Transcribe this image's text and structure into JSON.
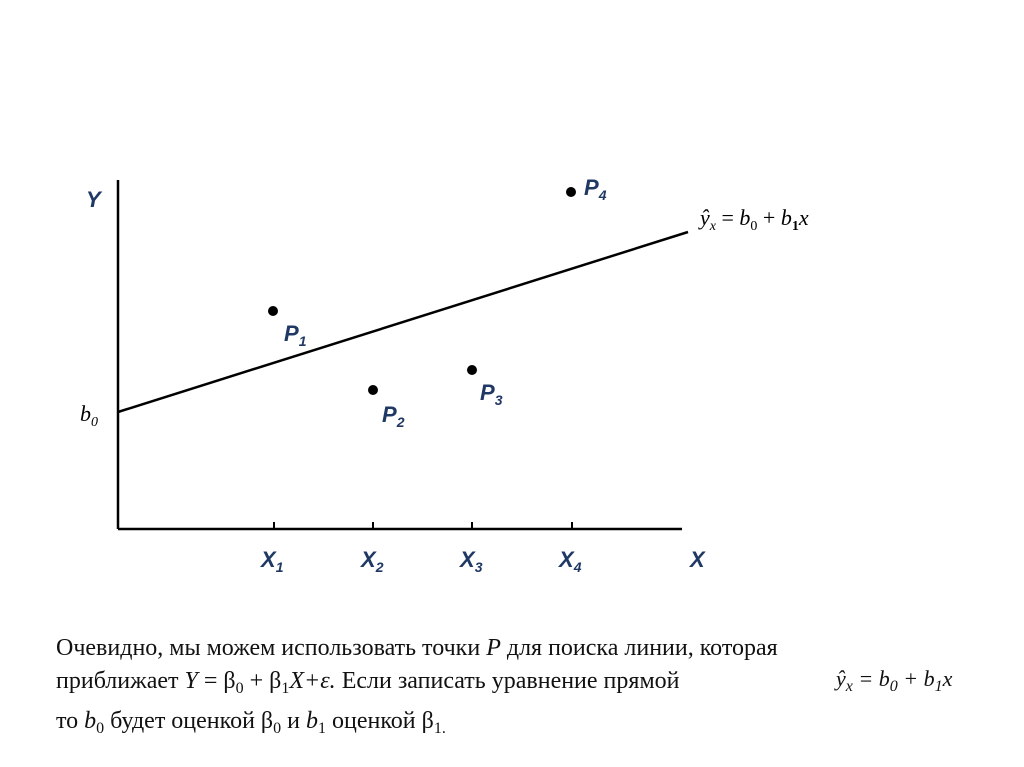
{
  "diagram": {
    "y_axis_label": "Y",
    "x_axis_label": "X",
    "intercept": {
      "base": "b",
      "sub": "0"
    },
    "equation": {
      "lhs_base": "ŷ",
      "lhs_sub": "x",
      "eq": " = ",
      "b0_base": "b",
      "b0_sub": "0",
      "plus": " + ",
      "b1_base": "b",
      "b1_sub": "1",
      "var": "x"
    },
    "points": [
      {
        "base": "P",
        "sub": "1"
      },
      {
        "base": "P",
        "sub": "2"
      },
      {
        "base": "P",
        "sub": "3"
      },
      {
        "base": "P",
        "sub": "4"
      }
    ],
    "x_ticks": [
      {
        "base": "X",
        "sub": "1"
      },
      {
        "base": "X",
        "sub": "2"
      },
      {
        "base": "X",
        "sub": "3"
      },
      {
        "base": "X",
        "sub": "4"
      }
    ],
    "colors": {
      "labels": "#1f3864",
      "lines": "#000000"
    }
  },
  "caption": {
    "line1_a": "Очевидно, мы можем использовать точки ",
    "line1_p": "P",
    "line1_b": " для поиска линии, которая",
    "line2_a": "приближает  ",
    "line2_y": "Y",
    "line2_eq": " = β",
    "line2_s0": "0",
    "line2_plus": " + β",
    "line2_s1": "1",
    "line2_x": "X",
    "line2_eps": "+ε.",
    "line2_b": "  Если записать уравнение прямой",
    "line3_a": "то ",
    "line3_b0": "b",
    "line3_b0s": "0",
    "line3_mid": "  будет оценкой β",
    "line3_beta0s": "0",
    "line3_and": "  и  ",
    "line3_b1": "b",
    "line3_b1s": "1",
    "line3_end": "  оценкой  β",
    "line3_beta1s": "1."
  },
  "caption_equation": {
    "lhs_base": "ŷ",
    "lhs_sub": "x",
    "rest": " = b",
    "s0": "0",
    "plus": " + b",
    "s1": "1",
    "var": "x"
  }
}
